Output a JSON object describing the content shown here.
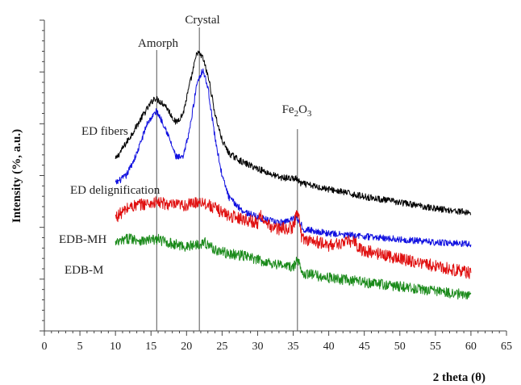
{
  "chart_data": {
    "type": "line",
    "xlabel": "2 theta (θ)",
    "ylabel": "Intensity (%, a.u.)",
    "xlim": [
      0,
      65
    ],
    "x_ticks": [
      0,
      5,
      10,
      15,
      20,
      25,
      30,
      35,
      40,
      45,
      50,
      55,
      60,
      65
    ],
    "y_ticks_labeled": false,
    "grid": false,
    "legend": "none (series labelled inline)",
    "reference_lines": [
      {
        "label": "Amorph",
        "x": 15.8
      },
      {
        "label": "Crystal",
        "x": 21.8
      },
      {
        "label": "Fe2O3",
        "x": 35.6
      }
    ],
    "series": [
      {
        "name": "ED fibers",
        "color": "#000000",
        "noise": 0.22,
        "points": [
          [
            10,
            2.1
          ],
          [
            12,
            3.6
          ],
          [
            14,
            5.2
          ],
          [
            15.5,
            6.3
          ],
          [
            17,
            5.8
          ],
          [
            18.5,
            4.6
          ],
          [
            19.5,
            5.2
          ],
          [
            20.5,
            7.3
          ],
          [
            21.5,
            9.4
          ],
          [
            22.3,
            9.0
          ],
          [
            23.2,
            7.4
          ],
          [
            24,
            5.2
          ],
          [
            25,
            3.4
          ],
          [
            26,
            2.5
          ],
          [
            28,
            1.9
          ],
          [
            30,
            1.5
          ],
          [
            33,
            0.9
          ],
          [
            35.5,
            0.8
          ],
          [
            36,
            0.5
          ],
          [
            40,
            0.1
          ],
          [
            45,
            -0.4
          ],
          [
            50,
            -0.8
          ],
          [
            55,
            -1.2
          ],
          [
            60,
            -1.5
          ]
        ]
      },
      {
        "name": "ED delignification",
        "color": "#1010e0",
        "noise": 0.22,
        "points": [
          [
            10,
            0.5
          ],
          [
            11.5,
            1.0
          ],
          [
            13,
            2.5
          ],
          [
            14.5,
            4.6
          ],
          [
            15.8,
            5.4
          ],
          [
            17,
            4.3
          ],
          [
            18.5,
            2.3
          ],
          [
            19.5,
            2.2
          ],
          [
            20.5,
            4.3
          ],
          [
            21.5,
            7.4
          ],
          [
            22.3,
            8.2
          ],
          [
            23,
            7.0
          ],
          [
            24,
            3.6
          ],
          [
            25,
            1.0
          ],
          [
            26,
            -0.5
          ],
          [
            28,
            -1.4
          ],
          [
            30,
            -1.8
          ],
          [
            33,
            -2.2
          ],
          [
            35.5,
            -1.8
          ],
          [
            36.5,
            -2.6
          ],
          [
            40,
            -2.9
          ],
          [
            45,
            -3.1
          ],
          [
            50,
            -3.3
          ],
          [
            55,
            -3.5
          ],
          [
            60,
            -3.6
          ]
        ]
      },
      {
        "name": "EDB-MH",
        "color": "#e01010",
        "noise": 0.42,
        "points": [
          [
            10,
            -1.8
          ],
          [
            12,
            -1.1
          ],
          [
            14,
            -0.9
          ],
          [
            16,
            -0.8
          ],
          [
            18,
            -1.0
          ],
          [
            20,
            -1.0
          ],
          [
            22,
            -0.7
          ],
          [
            24,
            -1.2
          ],
          [
            26,
            -1.7
          ],
          [
            28,
            -1.9
          ],
          [
            30,
            -2.2
          ],
          [
            30.5,
            -1.5
          ],
          [
            31,
            -2.3
          ],
          [
            33,
            -2.6
          ],
          [
            35,
            -2.5
          ],
          [
            35.6,
            -1.2
          ],
          [
            36.2,
            -3.2
          ],
          [
            40,
            -3.7
          ],
          [
            43.5,
            -3.4
          ],
          [
            44.5,
            -4.0
          ],
          [
            50,
            -4.6
          ],
          [
            55,
            -5.1
          ],
          [
            60,
            -5.6
          ]
        ]
      },
      {
        "name": "EDB-M",
        "color": "#1a8a1a",
        "noise": 0.36,
        "points": [
          [
            10,
            -3.6
          ],
          [
            12,
            -3.2
          ],
          [
            14,
            -3.4
          ],
          [
            16,
            -3.3
          ],
          [
            18,
            -3.6
          ],
          [
            20,
            -3.8
          ],
          [
            22.5,
            -3.5
          ],
          [
            24,
            -4.0
          ],
          [
            26,
            -4.3
          ],
          [
            28,
            -4.4
          ],
          [
            30,
            -4.7
          ],
          [
            33,
            -5.0
          ],
          [
            35,
            -5.2
          ],
          [
            35.6,
            -4.7
          ],
          [
            36.5,
            -5.6
          ],
          [
            40,
            -5.9
          ],
          [
            45,
            -6.2
          ],
          [
            50,
            -6.5
          ],
          [
            55,
            -6.8
          ],
          [
            60,
            -7.1
          ]
        ]
      }
    ]
  },
  "annotations": {
    "amorph": "Amorph",
    "crystal": "Crystal",
    "fe2o3_base": "Fe",
    "fe2o3_sub1": "2",
    "fe2o3_mid": "O",
    "fe2o3_sub2": "3",
    "label_ed_fibers": "ED fibers",
    "label_ed_delignification": "ED delignification",
    "label_edb_mh": "EDB-MH",
    "label_edb_m": "EDB-M"
  }
}
